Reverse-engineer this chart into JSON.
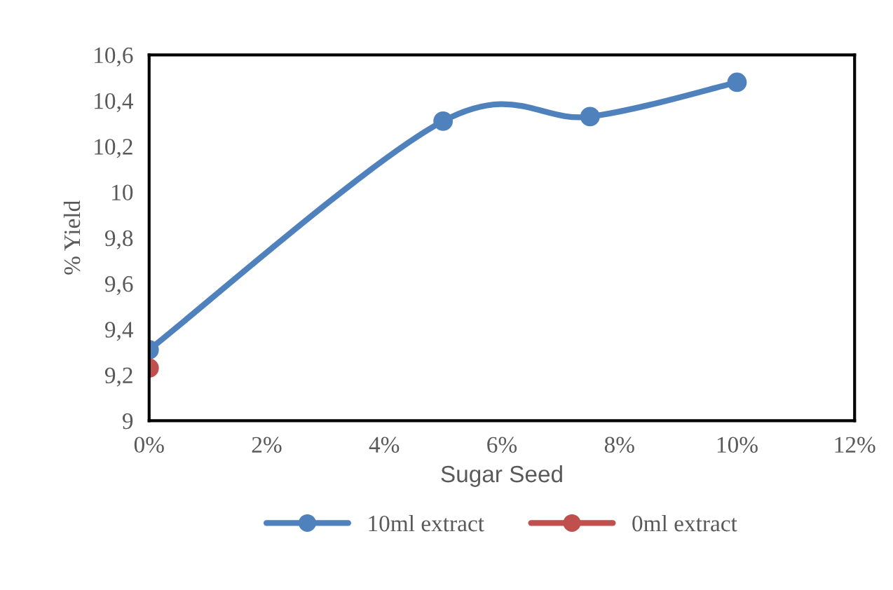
{
  "chart_data": {
    "type": "line",
    "xlabel": "Sugar Seed",
    "ylabel": "% Yield",
    "xlim": [
      0,
      12
    ],
    "xticks": [
      {
        "value": 0,
        "label": "0%"
      },
      {
        "value": 2,
        "label": "2%"
      },
      {
        "value": 4,
        "label": "4%"
      },
      {
        "value": 6,
        "label": "6%"
      },
      {
        "value": 8,
        "label": "8%"
      },
      {
        "value": 10,
        "label": "10%"
      },
      {
        "value": 12,
        "label": "12%"
      }
    ],
    "ylim": [
      9,
      10.6
    ],
    "yticks": [
      {
        "value": 9,
        "label": "9"
      },
      {
        "value": 9.2,
        "label": "9,2"
      },
      {
        "value": 9.4,
        "label": "9,4"
      },
      {
        "value": 9.6,
        "label": "9,6"
      },
      {
        "value": 9.8,
        "label": "9,8"
      },
      {
        "value": 10,
        "label": "10"
      },
      {
        "value": 10.2,
        "label": "10,2"
      },
      {
        "value": 10.4,
        "label": "10,4"
      },
      {
        "value": 10.6,
        "label": "10,6"
      }
    ],
    "grid": false,
    "legend": "bottom",
    "marker": "circle",
    "line_style": "solid",
    "series": [
      {
        "name": "10ml extract",
        "color": "#4f81bd",
        "x": [
          0,
          5,
          7.5,
          10
        ],
        "values": [
          9.31,
          10.31,
          10.33,
          10.48
        ]
      },
      {
        "name": "0ml extract",
        "color": "#c0504d",
        "x": [
          0
        ],
        "values": [
          9.23
        ]
      }
    ]
  }
}
